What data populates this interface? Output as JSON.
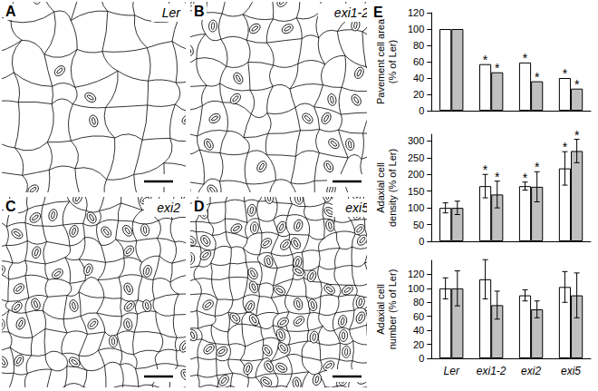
{
  "panels": [
    {
      "letter": "A",
      "label": "Ler"
    },
    {
      "letter": "B",
      "label": "exi1-2"
    },
    {
      "letter": "C",
      "label": "exi2"
    },
    {
      "letter": "D",
      "label": "exi5"
    }
  ],
  "chart_letter": "E",
  "chart_data": [
    {
      "type": "bar",
      "y_label": "Pavement cell area\n(% of Ler)",
      "categories": [
        "Ler",
        "exi1-2",
        "exi2",
        "exi5"
      ],
      "series": [
        {
          "color": "#ffffff",
          "values": [
            100,
            57,
            59,
            40
          ],
          "annotations": [
            null,
            "*",
            "*",
            "*"
          ]
        },
        {
          "color": "#c0c0c0",
          "values": [
            100,
            47,
            36,
            27
          ],
          "annotations": [
            null,
            "*",
            "*",
            "*"
          ]
        }
      ],
      "ylim": [
        0,
        120
      ],
      "yticks": [
        0,
        20,
        40,
        60,
        80,
        100,
        120
      ],
      "grid": false,
      "tick_labels": "y"
    },
    {
      "type": "bar",
      "y_label": "Adaxial cell\ndensity (% of Ler)",
      "categories": [
        "Ler",
        "exi1-2",
        "exi2",
        "exi5"
      ],
      "series": [
        {
          "color": "#ffffff",
          "values": [
            100,
            165,
            165,
            218
          ],
          "errors": [
            15,
            35,
            12,
            50
          ],
          "annotations": [
            null,
            "*",
            "*",
            "*"
          ]
        },
        {
          "color": "#c0c0c0",
          "values": [
            100,
            140,
            163,
            270
          ],
          "errors": [
            20,
            40,
            45,
            35
          ],
          "annotations": [
            null,
            "*",
            "*",
            "*"
          ]
        }
      ],
      "ylim": [
        0,
        320
      ],
      "yticks": [
        0,
        50,
        100,
        150,
        200,
        250,
        300
      ],
      "grid": false,
      "tick_labels": "y"
    },
    {
      "type": "bar",
      "y_label": "Adaxial cell\nnumber (% of Ler)",
      "categories": [
        "Ler",
        "exi1-2",
        "exi2",
        "exi5"
      ],
      "series": [
        {
          "color": "#ffffff",
          "values": [
            100,
            113,
            90,
            102
          ],
          "errors": [
            15,
            28,
            8,
            22
          ]
        },
        {
          "color": "#c0c0c0",
          "values": [
            100,
            76,
            70,
            90
          ],
          "errors": [
            25,
            20,
            12,
            32
          ]
        }
      ],
      "ylim": [
        0,
        140
      ],
      "yticks": [
        0,
        20,
        40,
        60,
        80,
        100,
        120
      ],
      "grid": false,
      "tick_labels": true
    }
  ]
}
